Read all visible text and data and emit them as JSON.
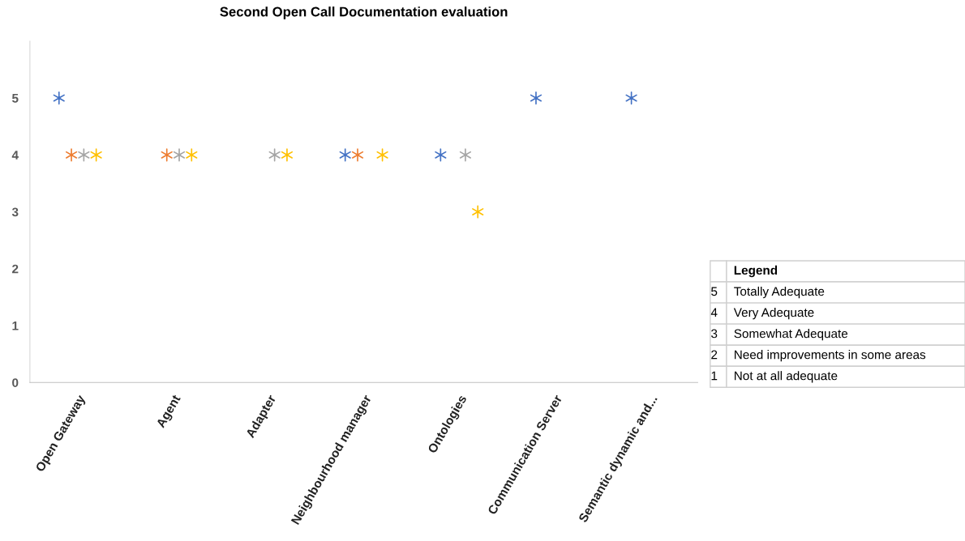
{
  "chart_data": {
    "type": "scatter",
    "title": "Second Open Call Documentation evaluation",
    "categories": [
      "Open Gateway",
      "Agent",
      "Adapter",
      "Neighbourhood manager",
      "Ontologies",
      "Communication Server",
      "Semantic dynamic and..."
    ],
    "series": [
      {
        "color": "#4472c4",
        "values": [
          5,
          null,
          null,
          4,
          4,
          5,
          5
        ]
      },
      {
        "color": "#ed7d31",
        "values": [
          4,
          4,
          null,
          4,
          null,
          null,
          null
        ]
      },
      {
        "color": "#a5a5a5",
        "values": [
          4,
          4,
          4,
          null,
          4,
          null,
          null
        ]
      },
      {
        "color": "#ffc000",
        "values": [
          4,
          4,
          4,
          4,
          3,
          null,
          null
        ]
      }
    ],
    "ylim": [
      0,
      6
    ],
    "yticks": [
      0,
      1,
      2,
      3,
      4,
      5
    ],
    "marker": "cross",
    "grid": false,
    "legend": false,
    "annotations": [
      "Legend",
      "5 Totally Adequate",
      "4 Very Adequate",
      "3 Somewhat Adequate",
      "2 Need improvements in some areas",
      "1 Not at all adequate"
    ]
  }
}
